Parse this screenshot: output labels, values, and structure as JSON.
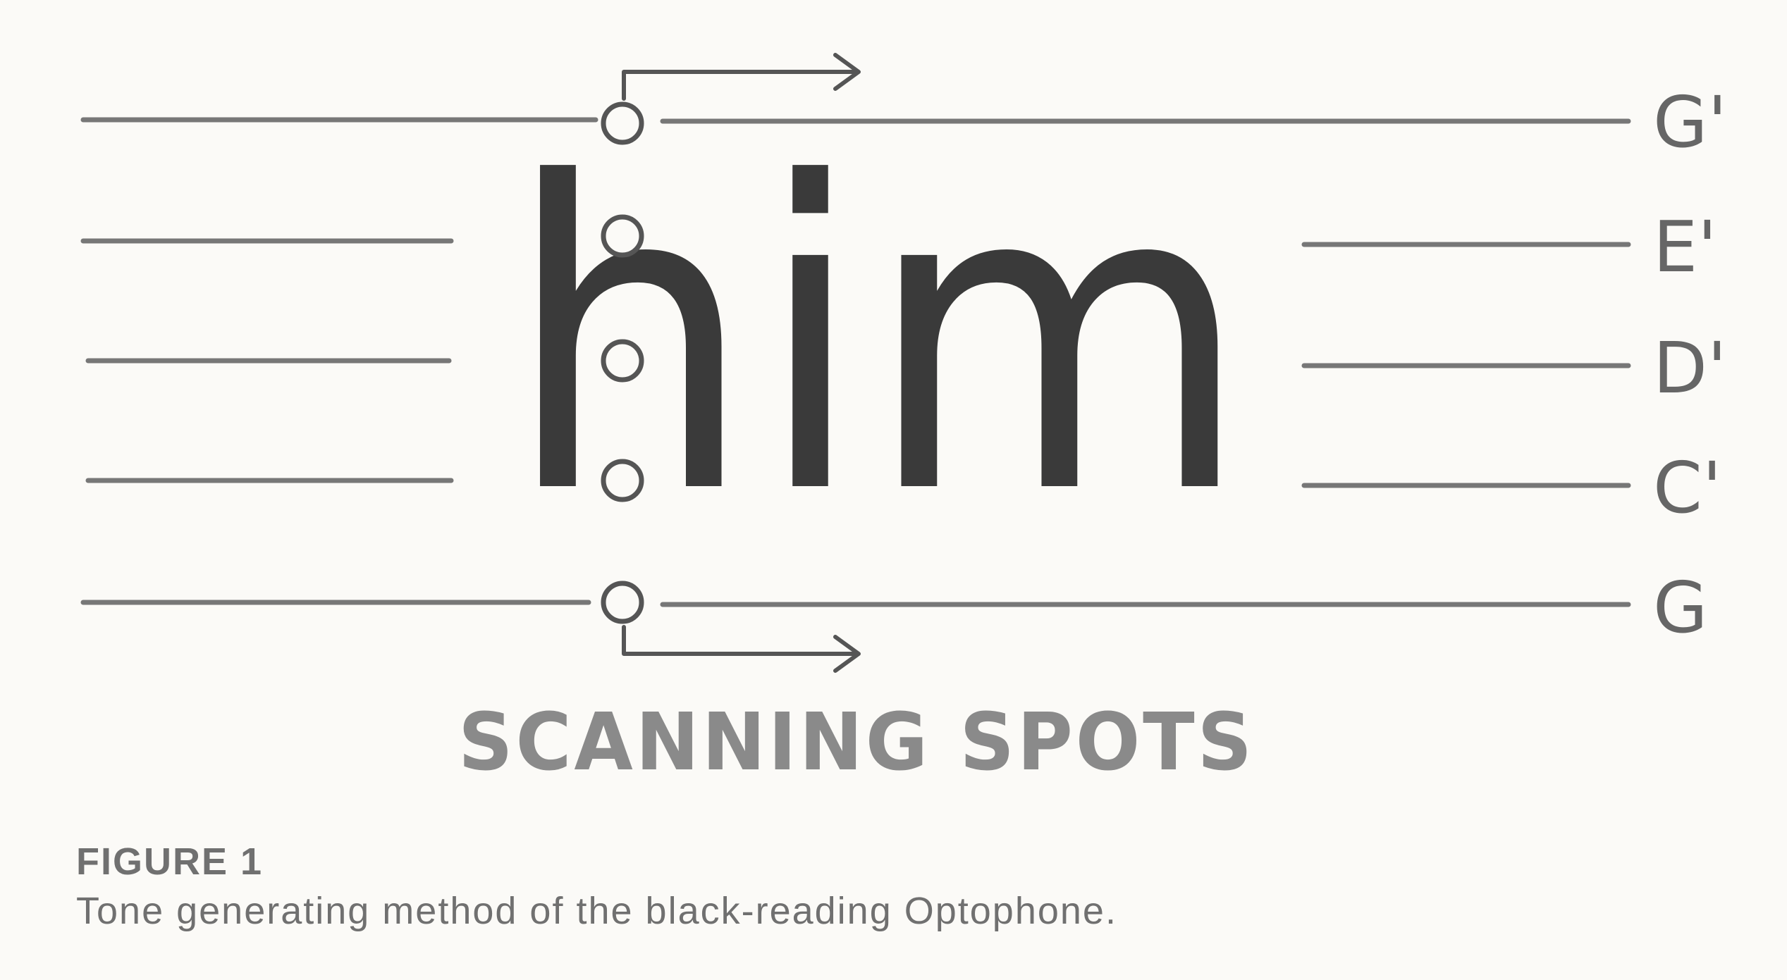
{
  "diagram": {
    "word": "him",
    "notes": [
      "G'",
      "E'",
      "D'",
      "C'",
      "G"
    ],
    "label": "SCANNING SPOTS"
  },
  "caption": {
    "title": "FIGURE 1",
    "text": "Tone generating method of the black-reading Optophone."
  }
}
